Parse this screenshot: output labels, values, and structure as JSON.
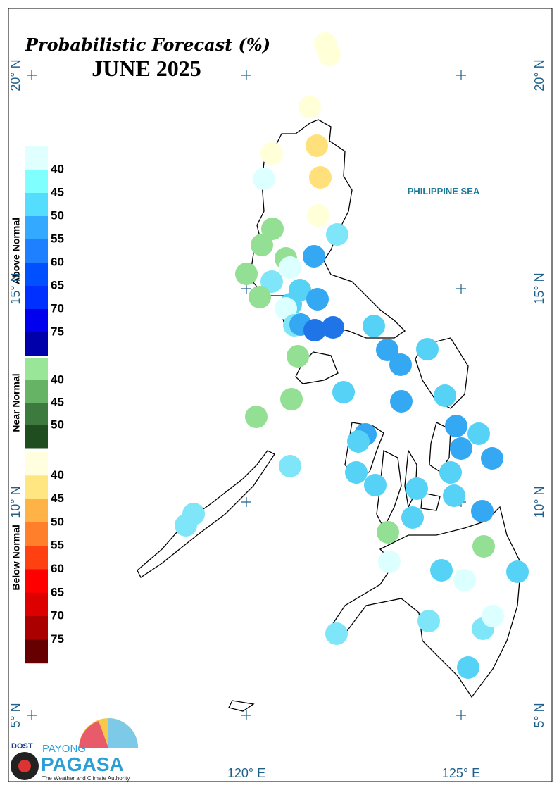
{
  "header": {
    "title": "Probabilistic Forecast (%)",
    "subtitle": "JUNE 2025"
  },
  "legend": {
    "groups": [
      {
        "label": "Above Normal",
        "colors": [
          "#e0ffff",
          "#80ffff",
          "#55ddff",
          "#33aaff",
          "#1e7fff",
          "#0050ff",
          "#0030ff",
          "#0000ee",
          "#0000aa"
        ],
        "ticks": [
          40,
          45,
          50,
          55,
          60,
          65,
          70,
          75
        ]
      },
      {
        "label": "Near Normal",
        "colors": [
          "#99e699",
          "#66b366",
          "#3d7a3d",
          "#1f4d1f"
        ],
        "ticks": [
          40,
          45,
          50
        ]
      },
      {
        "label": "Below Normal",
        "colors": [
          "#ffffe0",
          "#ffe680",
          "#ffb347",
          "#ff7f2a",
          "#ff4010",
          "#ff0000",
          "#dd0000",
          "#aa0000",
          "#660000"
        ],
        "ticks": [
          40,
          45,
          50,
          55,
          60,
          65,
          70,
          75
        ]
      }
    ]
  },
  "axes": {
    "lat": [
      "20° N",
      "15° N",
      "10° N",
      "5° N"
    ],
    "lon": [
      "120° E",
      "125° E"
    ]
  },
  "annotations": {
    "sea": "PHILIPPINE SEA"
  },
  "logo": {
    "agency": "DOST",
    "line1": "PAYONG",
    "line2": "PAGASA",
    "tagline": "The Weather and Climate Authority"
  }
}
